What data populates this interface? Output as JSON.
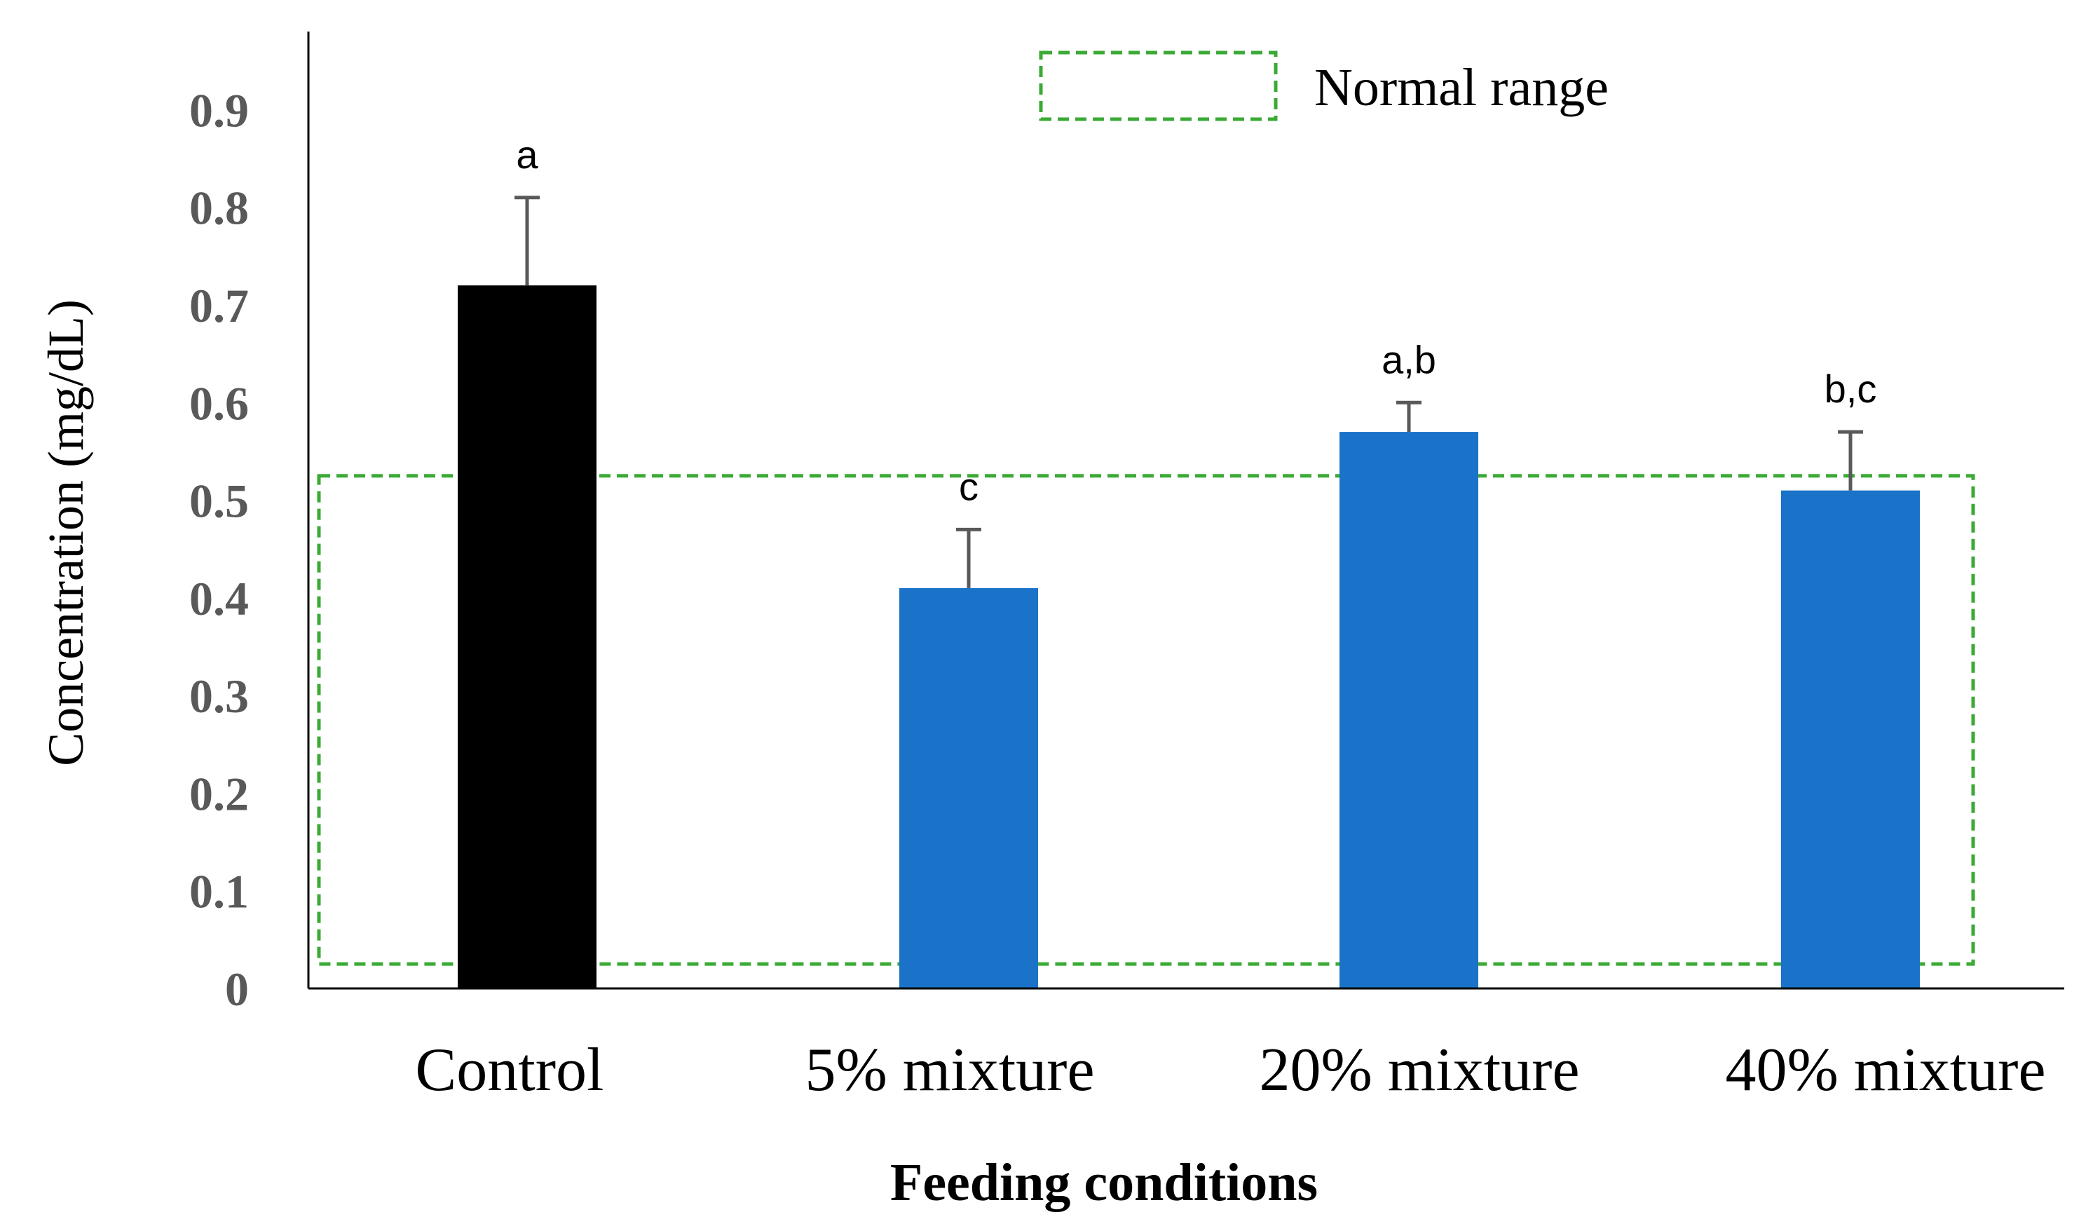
{
  "chart_data": {
    "type": "bar",
    "title": "",
    "xlabel": "Feeding conditions",
    "ylabel": "Concentration (mg/dL)",
    "ylim": [
      0,
      0.98
    ],
    "yticks": [
      "0",
      "0.1",
      "0.2",
      "0.3",
      "0.4",
      "0.5",
      "0.6",
      "0.7",
      "0.8",
      "0.9"
    ],
    "ytick_values": [
      0,
      0.1,
      0.2,
      0.3,
      0.4,
      0.5,
      0.6,
      0.7,
      0.8,
      0.9
    ],
    "categories": [
      "Control",
      "5% mixture",
      "20% mixture",
      "40% mixture"
    ],
    "values": [
      0.72,
      0.41,
      0.57,
      0.51
    ],
    "errors": [
      0.09,
      0.06,
      0.03,
      0.06
    ],
    "significance_labels": [
      "a",
      "c",
      "a,b",
      "b,c"
    ],
    "bar_colors": [
      "#000000",
      "#1a73c8",
      "#1a73c8",
      "#1a73c8"
    ],
    "normal_range": {
      "label": "Normal range",
      "low": 0.025,
      "high": 0.525,
      "color": "#3aaa35"
    },
    "legend_position": "top-right",
    "grid": false
  }
}
